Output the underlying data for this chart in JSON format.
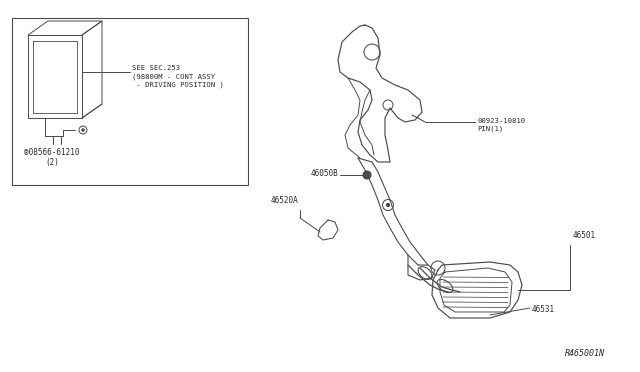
{
  "bg_color": "#ffffff",
  "line_color": "#4a4a4a",
  "text_color": "#2a2a2a",
  "fig_width": 6.4,
  "fig_height": 3.72,
  "dpi": 100,
  "labels": {
    "sec_ref_line1": "SEE SEC.253",
    "sec_ref_line2": "(98800M - CONT ASSY",
    "sec_ref_line3": " - DRIVING POSITION )",
    "part1_line1": "®08566-61210",
    "part1_line2": "(2)",
    "part2": "46050B",
    "part3": "46520A",
    "part4_line1": "00923-10810",
    "part4_line2": "PIN(1)",
    "part5": "46501",
    "part6": "46531",
    "ref_code": "R465001N"
  }
}
